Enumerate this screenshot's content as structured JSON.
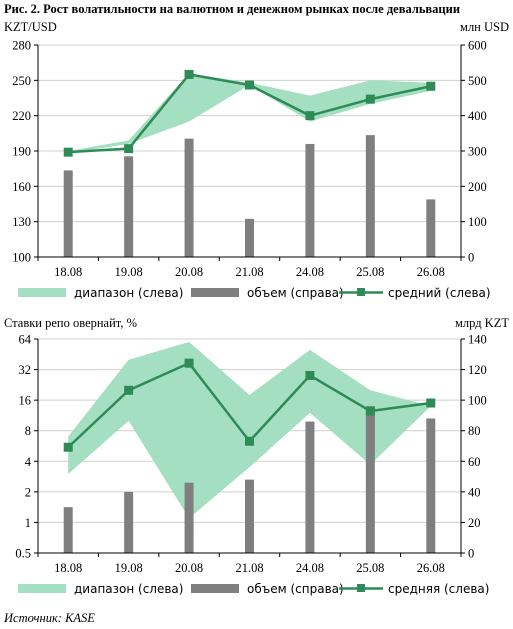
{
  "figure_title": "Рис. 2. Рост волатильности на валютном и денежном рынках после девальвации",
  "source": "Источник: KASE",
  "chart_data": [
    {
      "type": "bar",
      "left_axis_label": "KZT/USD",
      "right_axis_label": "млн USD",
      "categories": [
        "18.08",
        "19.08",
        "20.08",
        "21.08",
        "24.08",
        "25.08",
        "26.08"
      ],
      "left_axis": {
        "ylim": [
          100,
          280
        ],
        "ticks": [
          "100",
          "130",
          "160",
          "190",
          "220",
          "250",
          "280"
        ]
      },
      "right_axis": {
        "ylim": [
          0,
          600
        ],
        "ticks": [
          "0",
          "100",
          "200",
          "300",
          "400",
          "500",
          "600"
        ]
      },
      "range_low": [
        188,
        196,
        215,
        246,
        215,
        230,
        241
      ],
      "range_high": [
        190,
        199,
        256,
        248,
        237,
        250,
        248
      ],
      "average": [
        189,
        192,
        255,
        246,
        220,
        234,
        245
      ],
      "volume": [
        245,
        285,
        335,
        108,
        320,
        345,
        163
      ],
      "legend": {
        "range": "диапазон (слева)",
        "volume": "объем (справа)",
        "average": "средний (слева)"
      },
      "colors": {
        "range": "#a3dfc0",
        "volume": "#7f7f7f",
        "average": "#2e8b57"
      }
    },
    {
      "type": "bar",
      "left_axis_label": "Ставки репо овернайт, %",
      "right_axis_label": "млрд KZT",
      "categories": [
        "18.08",
        "19.08",
        "20.08",
        "21.08",
        "24.08",
        "25.08",
        "26.08"
      ],
      "left_axis": {
        "scale": "log2",
        "ylim": [
          0.5,
          64
        ],
        "ticks": [
          "0.5",
          "1",
          "2",
          "4",
          "8",
          "16",
          "32",
          "64"
        ]
      },
      "right_axis": {
        "ylim": [
          0,
          140
        ],
        "ticks": [
          "0",
          "20",
          "40",
          "60",
          "80",
          "100",
          "120",
          "140"
        ]
      },
      "range_low": [
        3,
        10,
        1.1,
        3.5,
        12,
        3.7,
        14
      ],
      "range_high": [
        7,
        40,
        60,
        18,
        50,
        20,
        14
      ],
      "average": [
        5.5,
        20,
        37,
        6.3,
        28,
        12.5,
        15
      ],
      "volume": [
        30,
        40,
        46,
        48,
        86,
        96,
        88
      ],
      "legend": {
        "range": "диапазон (слева)",
        "volume": "объем (справа)",
        "average": "средняя (слева)"
      },
      "colors": {
        "range": "#a3dfc0",
        "volume": "#7f7f7f",
        "average": "#2e8b57"
      }
    }
  ]
}
